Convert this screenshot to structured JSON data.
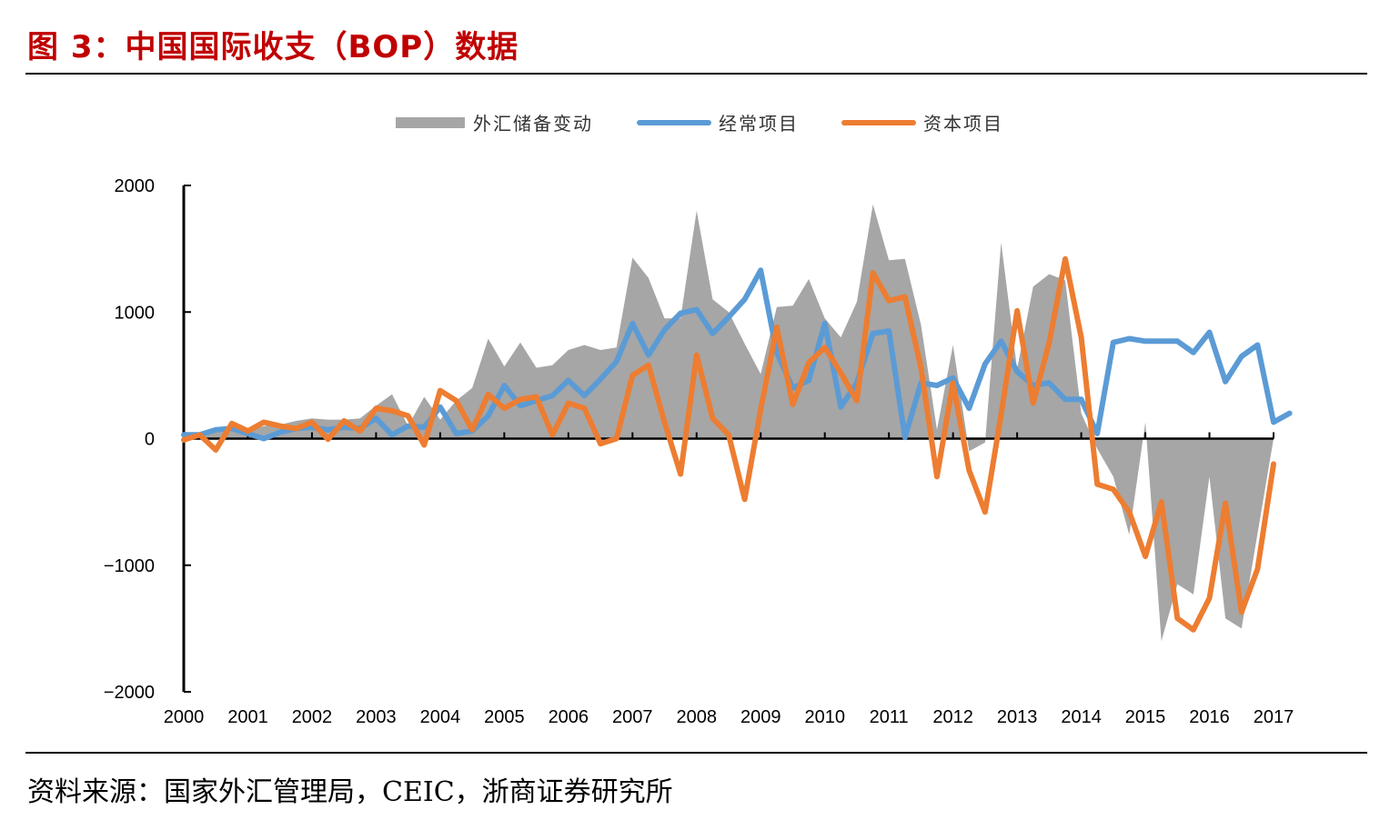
{
  "figure": {
    "title": "图 3：中国国际收支（BOP）数据",
    "source": "资料来源：国家外汇管理局，CEIC，浙商证券研究所"
  },
  "chart_data": {
    "type": "line",
    "ylim": [
      -2000,
      2000
    ],
    "yticks": [
      2000,
      1000,
      0,
      -1000,
      -2000
    ],
    "ytick_labels": [
      "2000",
      "1000",
      "0",
      "−1000",
      "−2000"
    ],
    "xlim": [
      2000,
      2017
    ],
    "xtick_labels": [
      "2000",
      "2001",
      "2002",
      "2003",
      "2004",
      "2005",
      "2006",
      "2007",
      "2008",
      "2009",
      "2010",
      "2011",
      "2012",
      "2013",
      "2014",
      "2015",
      "2016",
      "2017"
    ],
    "legend_position": "top-center",
    "colors": {
      "reserves": "#a6a6a6",
      "current": "#5b9bd5",
      "capital": "#ed7d31"
    },
    "series": [
      {
        "name": "外汇储备变动",
        "type": "area",
        "values": [
          30,
          40,
          60,
          70,
          60,
          100,
          110,
          140,
          160,
          150,
          150,
          160,
          260,
          350,
          100,
          330,
          150,
          300,
          400,
          790,
          570,
          760,
          560,
          580,
          700,
          740,
          700,
          720,
          1430,
          1270,
          950,
          950,
          1800,
          1100,
          1000,
          750,
          510,
          1040,
          1050,
          1260,
          950,
          800,
          1080,
          1850,
          1410,
          1420,
          900,
          70,
          740,
          -100,
          -30,
          1550,
          550,
          1200,
          1300,
          1250,
          200,
          -80,
          -300,
          -760,
          130,
          -1600,
          -1150,
          -1230,
          -300,
          -1420,
          -1500,
          0
        ],
        "x": [
          2000.0,
          2000.25,
          2000.5,
          2000.75,
          2001.0,
          2001.25,
          2001.5,
          2001.75,
          2002.0,
          2002.25,
          2002.5,
          2002.75,
          2003.0,
          2003.25,
          2003.5,
          2003.75,
          2004.0,
          2004.25,
          2004.5,
          2004.75,
          2005.0,
          2005.25,
          2005.5,
          2005.75,
          2006.0,
          2006.25,
          2006.5,
          2006.75,
          2007.0,
          2007.25,
          2007.5,
          2007.75,
          2008.0,
          2008.25,
          2008.5,
          2008.75,
          2009.0,
          2009.25,
          2009.5,
          2009.75,
          2010.0,
          2010.25,
          2010.5,
          2010.75,
          2011.0,
          2011.25,
          2011.5,
          2011.75,
          2012.0,
          2012.25,
          2012.5,
          2012.75,
          2013.0,
          2013.25,
          2013.5,
          2013.75,
          2014.0,
          2014.25,
          2014.5,
          2014.75,
          2015.0,
          2015.25,
          2015.5,
          2015.75,
          2016.0,
          2016.25,
          2016.5,
          2017.0
        ]
      },
      {
        "name": "经常项目",
        "type": "line",
        "values": [
          30,
          30,
          70,
          80,
          0,
          50,
          80,
          90,
          70,
          90,
          80,
          160,
          30,
          100,
          90,
          250,
          40,
          60,
          180,
          420,
          260,
          300,
          340,
          460,
          340,
          470,
          610,
          910,
          660,
          860,
          990,
          1020,
          830,
          960,
          1100,
          1330,
          680,
          400,
          460,
          910,
          250,
          440,
          830,
          850,
          10,
          440,
          420,
          480,
          240,
          590,
          770,
          530,
          420,
          440,
          310,
          310,
          40,
          760,
          790,
          770,
          770,
          770,
          680,
          840,
          450,
          650,
          740,
          130,
          200
        ],
        "x": [
          2000.0,
          2000.25,
          2000.5,
          2000.75,
          2001.25,
          2001.5,
          2001.75,
          2002.0,
          2002.25,
          2002.5,
          2002.75,
          2003.0,
          2003.25,
          2003.5,
          2003.75,
          2004.0,
          2004.25,
          2004.5,
          2004.75,
          2005.0,
          2005.25,
          2005.5,
          2005.75,
          2006.0,
          2006.25,
          2006.5,
          2006.75,
          2007.0,
          2007.25,
          2007.5,
          2007.75,
          2008.0,
          2008.25,
          2008.5,
          2008.75,
          2009.0,
          2009.25,
          2009.5,
          2009.75,
          2010.0,
          2010.25,
          2010.5,
          2010.75,
          2011.0,
          2011.25,
          2011.5,
          2011.75,
          2012.0,
          2012.25,
          2012.5,
          2012.75,
          2013.0,
          2013.25,
          2013.5,
          2013.75,
          2014.0,
          2014.25,
          2014.5,
          2014.75,
          2015.0,
          2015.25,
          2015.5,
          2015.75,
          2016.0,
          2016.25,
          2016.5,
          2016.75,
          2017.0,
          2017.25
        ]
      },
      {
        "name": "资本项目",
        "type": "line",
        "values": [
          -10,
          30,
          -90,
          120,
          60,
          130,
          100,
          80,
          130,
          -5,
          140,
          60,
          240,
          220,
          180,
          -50,
          380,
          300,
          70,
          350,
          240,
          310,
          330,
          30,
          280,
          240,
          -40,
          0,
          500,
          580,
          130,
          -280,
          660,
          160,
          30,
          -480,
          230,
          880,
          270,
          600,
          720,
          520,
          300,
          1310,
          1090,
          1120,
          560,
          -300,
          440,
          -250,
          -580,
          190,
          1010,
          280,
          760,
          1420,
          800,
          -360,
          -400,
          -580,
          -930,
          -500,
          -1420,
          -1510,
          -1260,
          -510,
          -1370,
          -1030,
          -200
        ],
        "x": [
          2000.0,
          2000.25,
          2000.5,
          2000.75,
          2001.0,
          2001.25,
          2001.5,
          2001.75,
          2002.0,
          2002.25,
          2002.5,
          2002.75,
          2003.0,
          2003.25,
          2003.5,
          2003.75,
          2004.0,
          2004.25,
          2004.5,
          2004.75,
          2005.0,
          2005.25,
          2005.5,
          2005.75,
          2006.0,
          2006.25,
          2006.5,
          2006.75,
          2007.0,
          2007.25,
          2007.5,
          2007.75,
          2008.0,
          2008.25,
          2008.5,
          2008.75,
          2009.0,
          2009.25,
          2009.5,
          2009.75,
          2010.0,
          2010.25,
          2010.5,
          2010.75,
          2011.0,
          2011.25,
          2011.5,
          2011.75,
          2012.0,
          2012.25,
          2012.5,
          2012.75,
          2013.0,
          2013.25,
          2013.5,
          2013.75,
          2014.0,
          2014.25,
          2014.5,
          2014.75,
          2015.0,
          2015.25,
          2015.5,
          2015.75,
          2016.0,
          2016.25,
          2016.5,
          2016.75,
          2017.0
        ]
      }
    ]
  }
}
